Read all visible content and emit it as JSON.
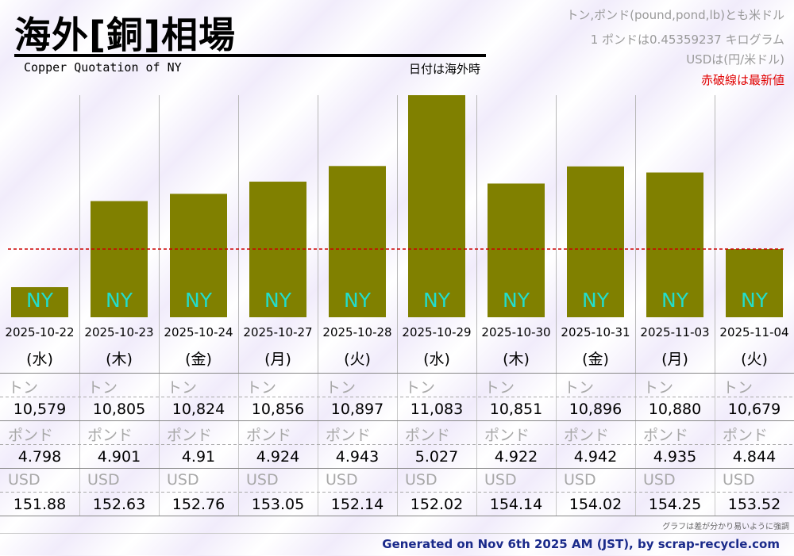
{
  "header": {
    "title": "海外[銅]相場",
    "subtitle": "Copper Quotation of NY",
    "date_note": "日付は海外時",
    "notes": [
      "トン,ポンド(pound,pond,lb)とも米ドル",
      "1 ポンドは0.45359237 キログラム",
      "USDは(円/米ドル)"
    ],
    "latest_note": "赤破線は最新値"
  },
  "chart_data": {
    "type": "bar",
    "bar_label": "NY",
    "categories": [
      "2025-10-22",
      "2025-10-23",
      "2025-10-24",
      "2025-10-27",
      "2025-10-28",
      "2025-10-29",
      "2025-10-30",
      "2025-10-31",
      "2025-11-03",
      "2025-11-04"
    ],
    "weekdays": [
      "(水)",
      "(木)",
      "(金)",
      "(月)",
      "(火)",
      "(水)",
      "(木)",
      "(金)",
      "(月)",
      "(火)"
    ],
    "series": [
      {
        "values": [
          10579,
          10805,
          10824,
          10856,
          10897,
          11083,
          10851,
          10896,
          10880,
          10679
        ]
      }
    ],
    "ylim": [
      10500,
      11083
    ],
    "latest_value": 10679,
    "grid": true,
    "bar_color": "#808000",
    "label_color": "#22ddcc",
    "latest_line_color": "#cc0000"
  },
  "table": {
    "rows": [
      {
        "label": "トン",
        "values": [
          "10,579",
          "10,805",
          "10,824",
          "10,856",
          "10,897",
          "11,083",
          "10,851",
          "10,896",
          "10,880",
          "10,679"
        ]
      },
      {
        "label": "ポンド",
        "values": [
          "4.798",
          "4.901",
          "4.91",
          "4.924",
          "4.943",
          "5.027",
          "4.922",
          "4.942",
          "4.935",
          "4.844"
        ]
      },
      {
        "label": "USD",
        "values": [
          "151.88",
          "152.63",
          "152.76",
          "153.05",
          "152.14",
          "152.02",
          "154.14",
          "154.02",
          "154.25",
          "153.52"
        ]
      }
    ]
  },
  "footnote": "グラフは差が分かり易いように強調",
  "footer": "Generated on Nov 6th 2025 AM (JST), by scrap-recycle.com"
}
